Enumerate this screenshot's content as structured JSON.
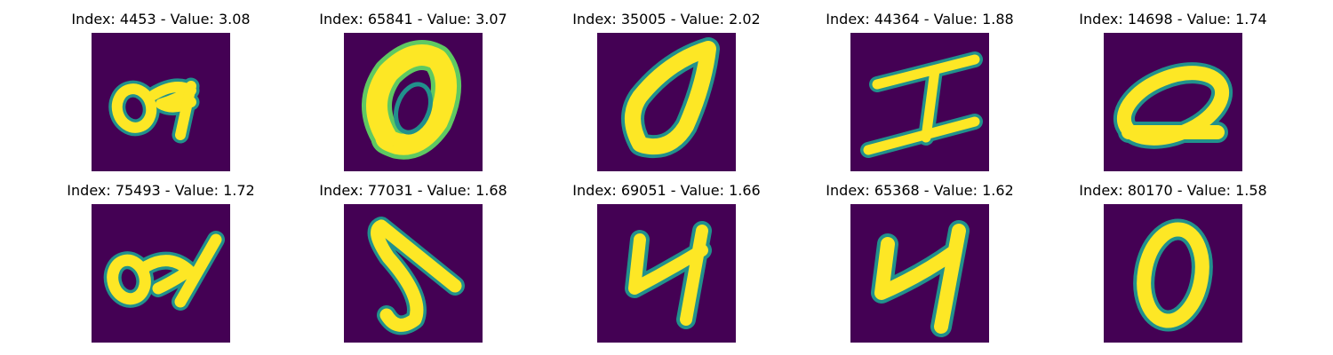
{
  "background_color": "#ffffff",
  "panel_background_color": "#440154",
  "stroke_color": "#fde725",
  "edge_color": "#21918c",
  "mid_edge_color": "#5ec962",
  "panels": [
    {
      "title": "Index: 4453 - Value: 3.08",
      "glyph": "04-loop"
    },
    {
      "title": "Index: 65841 - Value: 3.07",
      "glyph": "bold-zero"
    },
    {
      "title": "Index: 35005 - Value: 2.02",
      "glyph": "slanted-zero"
    },
    {
      "title": "Index: 44364 - Value: 1.88",
      "glyph": "serif-I"
    },
    {
      "title": "Index: 14698 - Value: 1.74",
      "glyph": "flat-zero"
    },
    {
      "title": "Index: 75493 - Value: 1.72",
      "glyph": "04-loop"
    },
    {
      "title": "Index: 77031 - Value: 1.68",
      "glyph": "S"
    },
    {
      "title": "Index: 69051 - Value: 1.66",
      "glyph": "4"
    },
    {
      "title": "Index: 65368 - Value: 1.62",
      "glyph": "4"
    },
    {
      "title": "Index: 80170 - Value: 1.58",
      "glyph": "oval-zero"
    }
  ]
}
